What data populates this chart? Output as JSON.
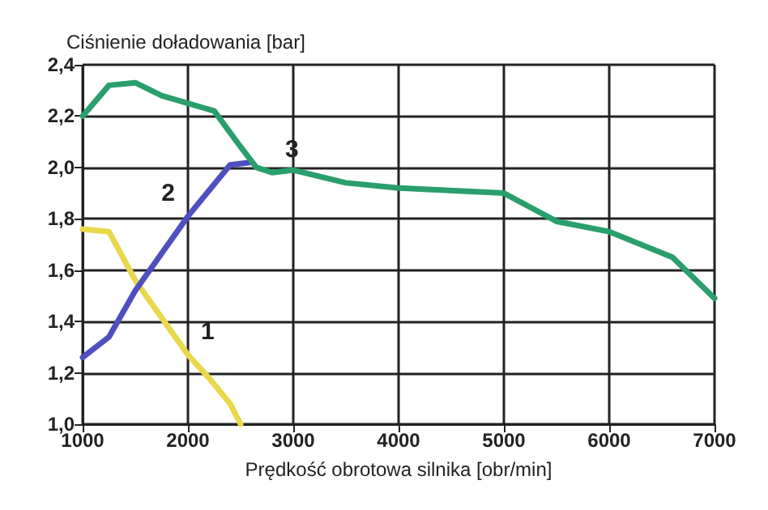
{
  "chart_data": {
    "type": "line",
    "ylabel": "Ciśnienie doładowania [bar]",
    "xlabel": "Prędkość obrotowa silnika [obr/min]",
    "xlim": [
      1000,
      7000
    ],
    "xticks": [
      1000,
      2000,
      3000,
      4000,
      5000,
      6000,
      7000
    ],
    "ylim": [
      1.0,
      2.4
    ],
    "yticks": [
      {
        "value": 1.0,
        "label": "1,0"
      },
      {
        "value": 1.2,
        "label": "1,2"
      },
      {
        "value": 1.4,
        "label": "1,4"
      },
      {
        "value": 1.6,
        "label": "1,6"
      },
      {
        "value": 1.8,
        "label": "1,8"
      },
      {
        "value": 2.0,
        "label": "2,0"
      },
      {
        "value": 2.2,
        "label": "2,2"
      },
      {
        "value": 2.4,
        "label": "2,4"
      }
    ],
    "grid": true,
    "marker": "none",
    "line_style": "solid",
    "series": [
      {
        "name": "1",
        "color": "#e8d84a",
        "x": [
          1000,
          1250,
          1500,
          2000,
          2200,
          2400,
          2500
        ],
        "values": [
          1.76,
          1.75,
          1.56,
          1.27,
          1.18,
          1.08,
          1.0
        ]
      },
      {
        "name": "2",
        "color": "#4f4fc0",
        "x": [
          1000,
          1250,
          1500,
          2000,
          2400,
          2600
        ],
        "values": [
          1.26,
          1.34,
          1.52,
          1.81,
          2.01,
          2.02
        ]
      },
      {
        "name": "3",
        "color": "#2a9e6c",
        "x": [
          1000,
          1250,
          1500,
          1750,
          2000,
          2250,
          2500,
          2650,
          2800,
          3000,
          3500,
          4000,
          5000,
          5500,
          6000,
          6600,
          7000
        ],
        "values": [
          2.2,
          2.32,
          2.33,
          2.28,
          2.25,
          2.22,
          2.08,
          2.0,
          1.98,
          1.99,
          1.94,
          1.92,
          1.9,
          1.79,
          1.75,
          1.65,
          1.49
        ]
      }
    ]
  }
}
